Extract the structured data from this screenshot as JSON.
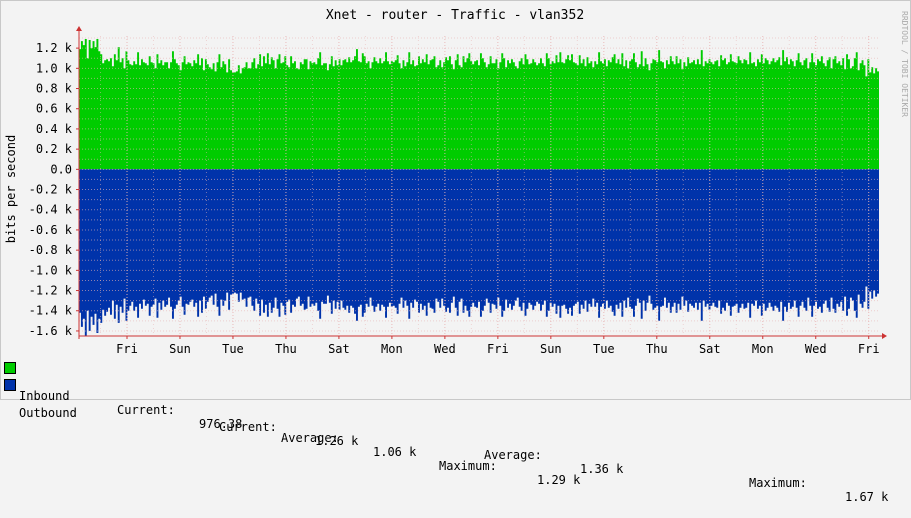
{
  "chart_data": {
    "type": "area",
    "title": "Xnet - router - Traffic - vlan352",
    "ylabel": "bits per second",
    "watermark": "RRDTOOL / TOBI OETIKER",
    "ylim": [
      -1650,
      1320
    ],
    "yticks": [
      "1.2 k",
      "1.0 k",
      "0.8 k",
      "0.6 k",
      "0.4 k",
      "0.2 k",
      "0.0",
      "-0.2 k",
      "-0.4 k",
      "-0.6 k",
      "-0.8 k",
      "-1.0 k",
      "-1.2 k",
      "-1.4 k",
      "-1.6 k"
    ],
    "ytick_values": [
      1200,
      1000,
      800,
      600,
      400,
      200,
      0,
      -200,
      -400,
      -600,
      -800,
      -1000,
      -1200,
      -1400,
      -1600
    ],
    "xticks": [
      "Fri",
      "Sun",
      "Tue",
      "Thu",
      "Sat",
      "Mon",
      "Wed",
      "Fri",
      "Sun",
      "Tue",
      "Thu",
      "Sat",
      "Mon",
      "Wed",
      "Fri"
    ],
    "grid": true,
    "colors": {
      "inbound": "#00cc00",
      "outbound": "#0033aa",
      "grid": "#e8b4b4",
      "axis": "#cc3333"
    },
    "series": [
      {
        "name": "Inbound",
        "values": [
          1190,
          1270,
          1230,
          1290,
          1100,
          1280,
          1200,
          1270,
          1210,
          1290,
          1170,
          1140,
          1050,
          1080,
          1090,
          1070,
          1100,
          1020,
          1140,
          1080,
          1210,
          1060,
          1100,
          1000,
          1170,
          1080,
          1040,
          1030,
          1070,
          1040,
          1160,
          1030,
          1090,
          1060,
          1050,
          1030,
          1120,
          1060,
          1050,
          1000,
          1140,
          1050,
          1080,
          1030,
          1060,
          1060,
          1000,
          1060,
          1170,
          1090,
          1050,
          1030,
          980,
          1060,
          1120,
          1040,
          1060,
          1050,
          1020,
          1080,
          1050,
          1140,
          1030,
          1100,
          980,
          1090,
          1040,
          1010,
          990,
          1050,
          970,
          1060,
          1140,
          1010,
          1070,
          1040,
          960,
          1090,
          980,
          960,
          960,
          970,
          1030,
          950,
          1000,
          1010,
          1060,
          1000,
          1000,
          1060,
          1100,
          1000,
          1040,
          1140,
          1020,
          1120,
          1050,
          1150,
          1040,
          1110,
          1080,
          1000,
          1090,
          1140,
          1050,
          1060,
          1120,
          1030,
          1010,
          1120,
          1050,
          1070,
          1000,
          990,
          1060,
          1040,
          1090,
          1090,
          990,
          1070,
          1050,
          1060,
          1040,
          1100,
          1160,
          1030,
          1050,
          1050,
          980,
          1040,
          1120,
          1020,
          1080,
          1030,
          1090,
          1030,
          1080,
          1090,
          1060,
          1110,
          1060,
          1080,
          1120,
          1190,
          1070,
          1060,
          1150,
          1120,
          1050,
          1070,
          1000,
          1060,
          1110,
          1070,
          1050,
          1100,
          1050,
          1070,
          1160,
          1070,
          1040,
          1070,
          1060,
          1080,
          1130,
          1050,
          1000,
          1080,
          1020,
          1060,
          1160,
          1040,
          1080,
          1020,
          1030,
          1120,
          1050,
          1090,
          1060,
          1140,
          1040,
          1080,
          1090,
          1120,
          1010,
          1030,
          1080,
          1010,
          1060,
          1110,
          1080,
          1120,
          1040,
          990,
          1080,
          1140,
          1030,
          1010,
          1120,
          1060,
          1100,
          1150,
          1070,
          1040,
          1070,
          1080,
          1030,
          1150,
          1100,
          1060,
          1010,
          1040,
          1120,
          1050,
          1050,
          1090,
          1000,
          1060,
          1150,
          1100,
          1010,
          1080,
          1050,
          1090,
          1060,
          1020,
          1000,
          1070,
          1100,
          1040,
          1140,
          1090,
          1040,
          1050,
          1090,
          1060,
          1030,
          1050,
          1100,
          1050,
          1020,
          1150,
          1100,
          1040,
          1070,
          1050,
          1130,
          1060,
          1160,
          1060,
          1050,
          1090,
          1130,
          1080,
          1140,
          1060,
          1050,
          1030,
          1130,
          1050,
          1090,
          1020,
          1110,
          1050,
          1070,
          1010,
          1070,
          1040,
          1160,
          1070,
          1050,
          1090,
          1020,
          1080,
          1060,
          1110,
          1140,
          1050,
          1090,
          1040,
          1150,
          1020,
          1080,
          1000,
          1070,
          1090,
          1150,
          1060,
          1010,
          1040,
          1170,
          1020,
          1100,
          1040,
          980,
          1050,
          1090,
          1080,
          1060,
          1180,
          1070,
          1060,
          1000,
          1080,
          1040,
          1120,
          1070,
          1040,
          1120,
          1050,
          1090,
          990,
          1060,
          1020,
          1110,
          1050,
          1060,
          1080,
          1040,
          1090,
          1040,
          1180,
          1020,
          1070,
          1050,
          1090,
          1060,
          1040,
          1070,
          1080,
          1020,
          1130,
          1080,
          1100,
          1040,
          1060,
          1140,
          1070,
          1060,
          1050,
          1120,
          1080,
          1050,
          1090,
          1080,
          1040,
          1160,
          1050,
          1060,
          1020,
          1090,
          1060,
          1140,
          1050,
          1100,
          1080,
          1040,
          1070,
          1100,
          1060,
          1080,
          1110,
          1030,
          1180,
          1070,
          1110,
          1040,
          1090,
          1070,
          1020,
          1080,
          1150,
          1060,
          1030,
          1080,
          1100,
          1000,
          1060,
          1150,
          1060,
          1030,
          1090,
          1070,
          1120,
          1050,
          1020,
          1080,
          1110,
          1000,
          1090,
          1120,
          1050,
          1070,
          1030,
          1100,
          990,
          1140,
          1090,
          1000,
          1020,
          1100,
          1160,
          980,
          1050,
          1080,
          1030,
          920,
          1090,
          960,
          1010,
          950,
          1000,
          970
        ]
      },
      {
        "name": "Outbound",
        "values": [
          -1420,
          -1560,
          -1480,
          -1650,
          -1400,
          -1600,
          -1460,
          -1540,
          -1430,
          -1620,
          -1480,
          -1520,
          -1390,
          -1450,
          -1410,
          -1370,
          -1440,
          -1300,
          -1480,
          -1340,
          -1520,
          -1360,
          -1420,
          -1280,
          -1500,
          -1400,
          -1350,
          -1310,
          -1400,
          -1360,
          -1470,
          -1330,
          -1380,
          -1290,
          -1350,
          -1330,
          -1450,
          -1360,
          -1340,
          -1280,
          -1470,
          -1320,
          -1390,
          -1300,
          -1360,
          -1340,
          -1270,
          -1360,
          -1480,
          -1380,
          -1340,
          -1300,
          -1260,
          -1360,
          -1440,
          -1330,
          -1340,
          -1310,
          -1290,
          -1360,
          -1320,
          -1460,
          -1300,
          -1420,
          -1260,
          -1380,
          -1310,
          -1270,
          -1250,
          -1340,
          -1230,
          -1360,
          -1450,
          -1290,
          -1350,
          -1300,
          -1220,
          -1390,
          -1240,
          -1230,
          -1220,
          -1230,
          -1310,
          -1220,
          -1290,
          -1280,
          -1360,
          -1270,
          -1260,
          -1350,
          -1400,
          -1280,
          -1330,
          -1450,
          -1290,
          -1420,
          -1340,
          -1460,
          -1320,
          -1420,
          -1370,
          -1270,
          -1380,
          -1460,
          -1320,
          -1350,
          -1440,
          -1310,
          -1290,
          -1420,
          -1340,
          -1360,
          -1280,
          -1260,
          -1350,
          -1330,
          -1390,
          -1380,
          -1260,
          -1360,
          -1330,
          -1350,
          -1320,
          -1400,
          -1480,
          -1310,
          -1330,
          -1330,
          -1250,
          -1320,
          -1430,
          -1300,
          -1380,
          -1310,
          -1390,
          -1300,
          -1370,
          -1390,
          -1350,
          -1420,
          -1350,
          -1370,
          -1430,
          -1500,
          -1360,
          -1340,
          -1460,
          -1420,
          -1330,
          -1360,
          -1270,
          -1350,
          -1410,
          -1360,
          -1330,
          -1400,
          -1340,
          -1360,
          -1470,
          -1360,
          -1320,
          -1360,
          -1350,
          -1370,
          -1430,
          -1330,
          -1270,
          -1370,
          -1300,
          -1350,
          -1480,
          -1320,
          -1370,
          -1290,
          -1310,
          -1420,
          -1330,
          -1390,
          -1350,
          -1450,
          -1320,
          -1370,
          -1380,
          -1420,
          -1280,
          -1310,
          -1370,
          -1280,
          -1350,
          -1410,
          -1370,
          -1420,
          -1320,
          -1260,
          -1370,
          -1450,
          -1310,
          -1280,
          -1420,
          -1350,
          -1400,
          -1460,
          -1360,
          -1320,
          -1360,
          -1370,
          -1310,
          -1460,
          -1400,
          -1350,
          -1280,
          -1320,
          -1420,
          -1330,
          -1340,
          -1380,
          -1270,
          -1350,
          -1460,
          -1400,
          -1290,
          -1370,
          -1330,
          -1390,
          -1350,
          -1300,
          -1270,
          -1360,
          -1400,
          -1320,
          -1450,
          -1380,
          -1320,
          -1340,
          -1390,
          -1350,
          -1310,
          -1330,
          -1400,
          -1340,
          -1300,
          -1460,
          -1400,
          -1320,
          -1360,
          -1330,
          -1430,
          -1350,
          -1470,
          -1350,
          -1340,
          -1380,
          -1430,
          -1370,
          -1450,
          -1350,
          -1330,
          -1310,
          -1430,
          -1340,
          -1380,
          -1300,
          -1410,
          -1330,
          -1360,
          -1280,
          -1360,
          -1320,
          -1470,
          -1360,
          -1330,
          -1380,
          -1300,
          -1370,
          -1350,
          -1410,
          -1450,
          -1340,
          -1380,
          -1320,
          -1460,
          -1300,
          -1370,
          -1270,
          -1360,
          -1380,
          -1460,
          -1350,
          -1280,
          -1320,
          -1480,
          -1300,
          -1400,
          -1320,
          -1250,
          -1330,
          -1390,
          -1370,
          -1350,
          -1500,
          -1360,
          -1350,
          -1270,
          -1370,
          -1320,
          -1420,
          -1360,
          -1320,
          -1420,
          -1330,
          -1390,
          -1260,
          -1350,
          -1300,
          -1410,
          -1330,
          -1350,
          -1370,
          -1320,
          -1390,
          -1320,
          -1500,
          -1300,
          -1360,
          -1330,
          -1390,
          -1350,
          -1320,
          -1360,
          -1370,
          -1300,
          -1430,
          -1370,
          -1400,
          -1320,
          -1350,
          -1450,
          -1360,
          -1350,
          -1330,
          -1420,
          -1370,
          -1330,
          -1380,
          -1370,
          -1320,
          -1470,
          -1330,
          -1350,
          -1300,
          -1380,
          -1350,
          -1450,
          -1330,
          -1400,
          -1370,
          -1320,
          -1360,
          -1400,
          -1350,
          -1370,
          -1410,
          -1310,
          -1500,
          -1360,
          -1410,
          -1320,
          -1380,
          -1360,
          -1300,
          -1370,
          -1460,
          -1350,
          -1310,
          -1370,
          -1400,
          -1270,
          -1350,
          -1460,
          -1350,
          -1310,
          -1380,
          -1360,
          -1420,
          -1330,
          -1300,
          -1370,
          -1410,
          -1270,
          -1380,
          -1420,
          -1330,
          -1360,
          -1310,
          -1400,
          -1260,
          -1450,
          -1380,
          -1270,
          -1300,
          -1400,
          -1470,
          -1240,
          -1330,
          -1370,
          -1310,
          -1160,
          -1380,
          -1210,
          -1280,
          -1200,
          -1260,
          -1230
        ]
      }
    ]
  },
  "legend": {
    "inbound": {
      "label": "Inbound",
      "current_label": "Current:",
      "current_value": "976.38",
      "average_label": "Average:",
      "average_value": "1.06 k",
      "maximum_label": "Maximum:",
      "maximum_value": "1.29 k"
    },
    "outbound": {
      "label": "Outbound",
      "current_label": "Current:",
      "current_value": "1.26 k",
      "average_label": "Average:",
      "average_value": "1.36 k",
      "maximum_label": "Maximum:",
      "maximum_value": "1.67 k"
    }
  }
}
